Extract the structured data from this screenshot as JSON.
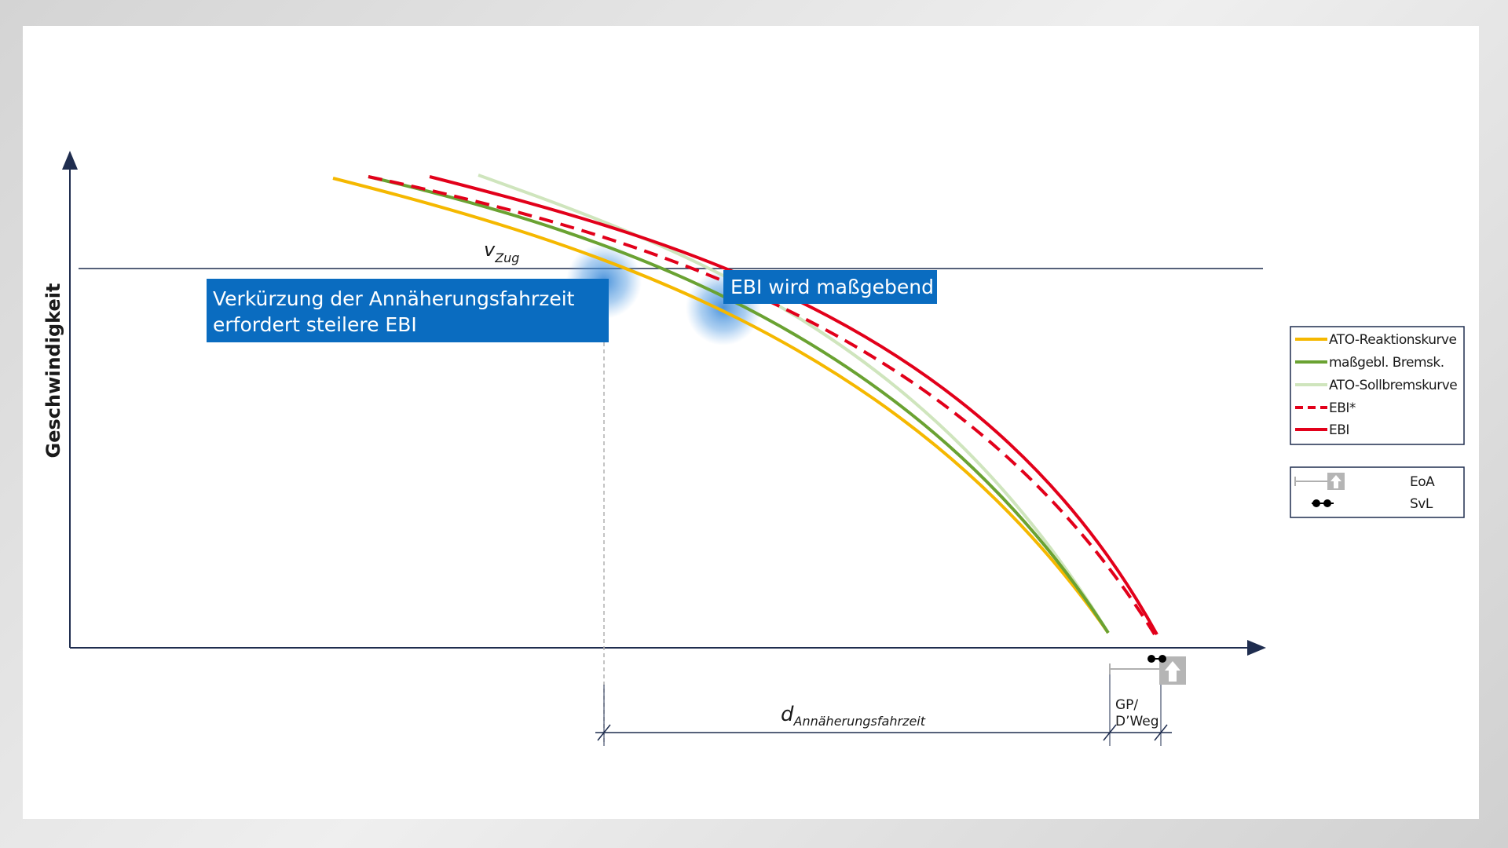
{
  "axis": {
    "y_label": "Geschwindigkeit",
    "v_symbol": "v",
    "v_subscript": "Zug"
  },
  "callouts": [
    {
      "lines": [
        "Verkürzung der Annäherungsfahrzeit",
        "erfordert steilere EBI"
      ]
    },
    {
      "lines": [
        "EBI wird maßgebend"
      ]
    }
  ],
  "legend": {
    "entries": [
      "ATO-Reaktionskurve",
      "maßgebl. Bremsk.",
      "ATO-Sollbremskurve",
      "EBI*",
      "EBI"
    ]
  },
  "legend2": {
    "entries": [
      "EoA",
      "SvL"
    ]
  },
  "dimensions": {
    "d_symbol": "d",
    "d_subscript": "Annäherungsfahrzeit",
    "gp_lines": [
      "GP/",
      "D’Weg"
    ]
  }
}
